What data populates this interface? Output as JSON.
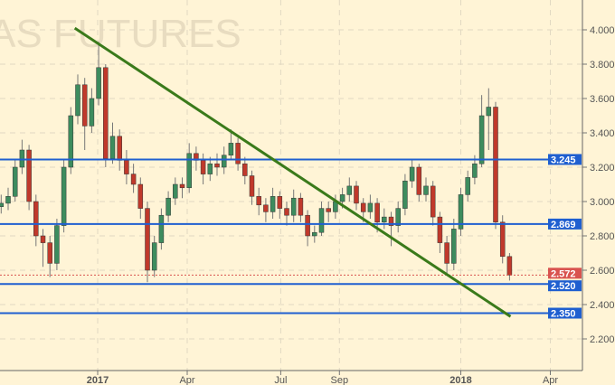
{
  "chart_data": {
    "type": "candlestick",
    "watermark": "AS FUTURES",
    "x_ticks": [
      {
        "label": "2017",
        "date": "2017-01-01"
      },
      {
        "label": "Apr",
        "date": "2017-04-01"
      },
      {
        "label": "Jul",
        "date": "2017-07-04"
      },
      {
        "label": "Sep",
        "date": "2017-09-01"
      },
      {
        "label": "2018",
        "date": "2018-01-01"
      },
      {
        "label": "Apr",
        "date": "2018-04-01"
      }
    ],
    "y_ticks": [
      "2.200",
      "2.400",
      "2.600",
      "2.800",
      "3.000",
      "3.200",
      "3.400",
      "3.600",
      "3.800",
      "4.000"
    ],
    "ylim": [
      2.05,
      4.1
    ],
    "grid": true,
    "colors": {
      "background": "#fff4d6",
      "up": "#3d8c5e",
      "down": "#c0392b",
      "level": "#1f5fd0",
      "last": "#d9534f",
      "trendline": "#3a7a1a"
    },
    "levels": [
      {
        "value": 3.245,
        "label": "3.245"
      },
      {
        "value": 2.869,
        "label": "2.869"
      },
      {
        "value": 2.52,
        "label": "2.520"
      },
      {
        "value": 2.35,
        "label": "2.350"
      }
    ],
    "last_price": {
      "value": 2.572,
      "label": "2.572"
    },
    "trendline": [
      {
        "date": "2016-12-09",
        "value": 4.01
      },
      {
        "date": "2018-02-20",
        "value": 2.33
      }
    ],
    "candles_columns": [
      "date",
      "open",
      "high",
      "low",
      "close"
    ],
    "candles": [
      [
        "2016-09-26",
        2.97,
        3.04,
        2.93,
        2.99
      ],
      [
        "2016-10-03",
        2.99,
        3.08,
        2.95,
        3.03
      ],
      [
        "2016-10-10",
        3.03,
        3.25,
        3.0,
        3.2
      ],
      [
        "2016-10-17",
        3.2,
        3.36,
        3.16,
        3.3
      ],
      [
        "2016-10-24",
        3.3,
        3.33,
        2.95,
        3.0
      ],
      [
        "2016-10-31",
        3.0,
        3.04,
        2.74,
        2.8
      ],
      [
        "2016-11-07",
        2.8,
        2.84,
        2.62,
        2.76
      ],
      [
        "2016-11-14",
        2.76,
        2.8,
        2.56,
        2.64
      ],
      [
        "2016-11-21",
        2.64,
        2.9,
        2.6,
        2.86
      ],
      [
        "2016-11-28",
        2.86,
        3.24,
        2.82,
        3.2
      ],
      [
        "2016-12-05",
        3.2,
        3.55,
        3.16,
        3.5
      ],
      [
        "2016-12-12",
        3.5,
        3.74,
        3.45,
        3.68
      ],
      [
        "2016-12-19",
        3.68,
        3.72,
        3.3,
        3.44
      ],
      [
        "2016-12-26",
        3.44,
        3.66,
        3.4,
        3.6
      ],
      [
        "2017-01-02",
        3.6,
        3.93,
        3.56,
        3.78
      ],
      [
        "2017-01-09",
        3.78,
        3.8,
        3.2,
        3.25
      ],
      [
        "2017-01-16",
        3.25,
        3.46,
        3.22,
        3.38
      ],
      [
        "2017-01-23",
        3.38,
        3.42,
        3.18,
        3.24
      ],
      [
        "2017-01-30",
        3.24,
        3.3,
        3.1,
        3.16
      ],
      [
        "2017-02-06",
        3.16,
        3.22,
        3.05,
        3.1
      ],
      [
        "2017-02-13",
        3.1,
        3.14,
        2.9,
        2.96
      ],
      [
        "2017-02-20",
        2.96,
        3.0,
        2.53,
        2.6
      ],
      [
        "2017-02-27",
        2.6,
        2.8,
        2.56,
        2.76
      ],
      [
        "2017-03-06",
        2.76,
        2.96,
        2.72,
        2.92
      ],
      [
        "2017-03-13",
        2.92,
        3.06,
        2.88,
        3.02
      ],
      [
        "2017-03-20",
        3.02,
        3.14,
        2.98,
        3.1
      ],
      [
        "2017-03-27",
        3.1,
        3.14,
        3.02,
        3.08
      ],
      [
        "2017-04-03",
        3.08,
        3.34,
        3.05,
        3.28
      ],
      [
        "2017-04-10",
        3.28,
        3.32,
        3.18,
        3.24
      ],
      [
        "2017-04-17",
        3.24,
        3.28,
        3.1,
        3.16
      ],
      [
        "2017-04-24",
        3.16,
        3.26,
        3.12,
        3.22
      ],
      [
        "2017-05-01",
        3.22,
        3.28,
        3.15,
        3.2
      ],
      [
        "2017-05-08",
        3.2,
        3.32,
        3.16,
        3.27
      ],
      [
        "2017-05-15",
        3.27,
        3.42,
        3.24,
        3.34
      ],
      [
        "2017-05-22",
        3.34,
        3.37,
        3.18,
        3.22
      ],
      [
        "2017-05-29",
        3.22,
        3.26,
        3.1,
        3.15
      ],
      [
        "2017-06-05",
        3.15,
        3.18,
        2.98,
        3.03
      ],
      [
        "2017-06-12",
        3.03,
        3.08,
        2.92,
        2.98
      ],
      [
        "2017-06-19",
        2.98,
        3.02,
        2.88,
        2.94
      ],
      [
        "2017-06-26",
        2.94,
        3.08,
        2.9,
        3.03
      ],
      [
        "2017-07-03",
        3.03,
        3.06,
        2.9,
        2.96
      ],
      [
        "2017-07-10",
        2.96,
        3.0,
        2.86,
        2.92
      ],
      [
        "2017-07-17",
        2.92,
        3.07,
        2.88,
        3.02
      ],
      [
        "2017-07-24",
        3.02,
        3.05,
        2.88,
        2.92
      ],
      [
        "2017-07-31",
        2.92,
        2.95,
        2.74,
        2.8
      ],
      [
        "2017-08-07",
        2.8,
        2.86,
        2.76,
        2.82
      ],
      [
        "2017-08-14",
        2.82,
        3.0,
        2.8,
        2.96
      ],
      [
        "2017-08-21",
        2.96,
        3.0,
        2.88,
        2.94
      ],
      [
        "2017-08-28",
        2.94,
        3.04,
        2.9,
        3.0
      ],
      [
        "2017-09-04",
        3.0,
        3.08,
        2.96,
        3.04
      ],
      [
        "2017-09-11",
        3.04,
        3.14,
        3.0,
        3.09
      ],
      [
        "2017-09-18",
        3.09,
        3.12,
        2.95,
        2.99
      ],
      [
        "2017-09-25",
        2.99,
        3.02,
        2.88,
        2.94
      ],
      [
        "2017-10-02",
        2.94,
        3.04,
        2.9,
        2.99
      ],
      [
        "2017-10-09",
        2.99,
        3.02,
        2.82,
        2.88
      ],
      [
        "2017-10-16",
        2.88,
        2.96,
        2.84,
        2.91
      ],
      [
        "2017-10-23",
        2.91,
        2.94,
        2.74,
        2.86
      ],
      [
        "2017-10-30",
        2.86,
        3.0,
        2.82,
        2.96
      ],
      [
        "2017-11-06",
        2.96,
        3.16,
        2.92,
        3.12
      ],
      [
        "2017-11-13",
        3.12,
        3.24,
        3.08,
        3.2
      ],
      [
        "2017-11-20",
        3.2,
        3.22,
        3.0,
        3.04
      ],
      [
        "2017-11-27",
        3.04,
        3.14,
        3.0,
        3.09
      ],
      [
        "2017-12-04",
        3.09,
        3.12,
        2.86,
        2.91
      ],
      [
        "2017-12-11",
        2.91,
        2.94,
        2.7,
        2.76
      ],
      [
        "2017-12-18",
        2.76,
        2.8,
        2.57,
        2.64
      ],
      [
        "2017-12-25",
        2.64,
        2.9,
        2.6,
        2.84
      ],
      [
        "2018-01-01",
        2.84,
        3.08,
        2.8,
        3.04
      ],
      [
        "2018-01-08",
        3.04,
        3.18,
        3.0,
        3.14
      ],
      [
        "2018-01-15",
        3.14,
        3.27,
        3.1,
        3.22
      ],
      [
        "2018-01-22",
        3.22,
        3.62,
        3.2,
        3.5
      ],
      [
        "2018-01-29",
        3.5,
        3.66,
        3.3,
        3.55
      ],
      [
        "2018-02-05",
        3.55,
        3.58,
        2.84,
        2.88
      ],
      [
        "2018-02-12",
        2.88,
        2.92,
        2.64,
        2.68
      ],
      [
        "2018-02-19",
        2.68,
        2.7,
        2.54,
        2.572
      ]
    ]
  }
}
